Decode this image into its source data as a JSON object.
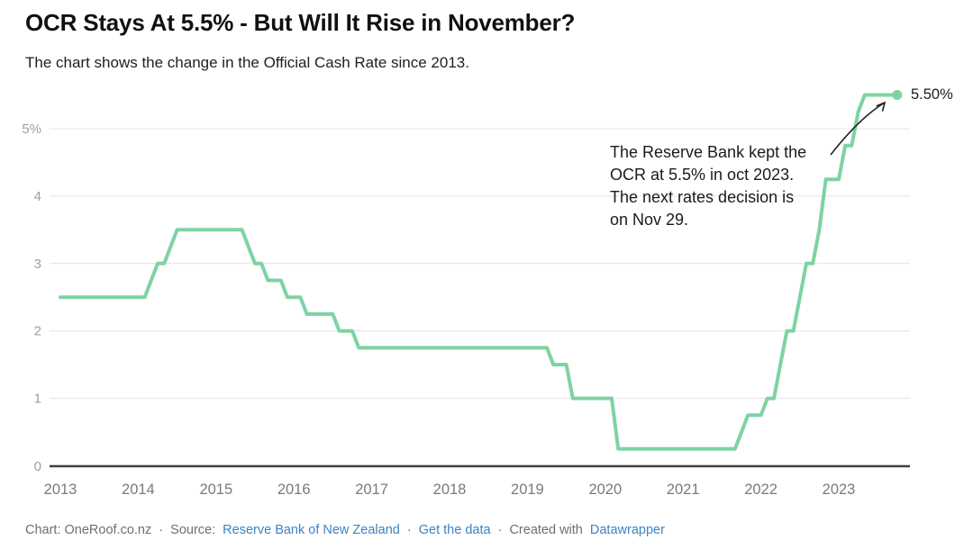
{
  "header": {
    "title": "OCR Stays At 5.5% - But Will It Rise in November?",
    "subtitle": "The chart shows the change in the Official Cash Rate since 2013."
  },
  "annotation": {
    "lines": [
      "The Reserve Bank kept the",
      "OCR at 5.5% in oct 2023.",
      "The next rates decision is",
      "on Nov 29."
    ]
  },
  "footer": {
    "chart_credit": "Chart: OneRoof.co.nz",
    "separator": "·",
    "source_label": "Source:",
    "source_link": "Reserve Bank of New Zealand",
    "get_data_link": "Get the data",
    "created_with": "Created with",
    "tool_link": "Datawrapper"
  },
  "chart_data": {
    "type": "line",
    "title": "OCR Stays At 5.5% - But Will It Rise in November?",
    "series_name": "Official Cash Rate",
    "unit": "%",
    "end_label": "5.50%",
    "end_point": {
      "date": "2023-10",
      "value": 5.5
    },
    "ylim": [
      0,
      5.5
    ],
    "grid": "horizontal",
    "line_color": "#7ed3a2",
    "yticks": [
      {
        "value": 0,
        "label": "0"
      },
      {
        "value": 1,
        "label": "1"
      },
      {
        "value": 2,
        "label": "2"
      },
      {
        "value": 3,
        "label": "3"
      },
      {
        "value": 4,
        "label": "4"
      },
      {
        "value": 5,
        "label": "5%"
      }
    ],
    "xticks": [
      {
        "value": 2013,
        "label": "2013"
      },
      {
        "value": 2014,
        "label": "2014"
      },
      {
        "value": 2015,
        "label": "2015"
      },
      {
        "value": 2016,
        "label": "2016"
      },
      {
        "value": 2017,
        "label": "2017"
      },
      {
        "value": 2018,
        "label": "2018"
      },
      {
        "value": 2019,
        "label": "2019"
      },
      {
        "value": 2020,
        "label": "2020"
      },
      {
        "value": 2021,
        "label": "2021"
      },
      {
        "value": 2022,
        "label": "2022"
      },
      {
        "value": 2023,
        "label": "2023"
      }
    ],
    "interpolation": "monthly, value held between changes",
    "rate_changes": [
      [
        "2013-01",
        2.5
      ],
      [
        "2014-03",
        2.75
      ],
      [
        "2014-04",
        3.0
      ],
      [
        "2014-06",
        3.25
      ],
      [
        "2014-07",
        3.5
      ],
      [
        "2015-06",
        3.25
      ],
      [
        "2015-07",
        3.0
      ],
      [
        "2015-09",
        2.75
      ],
      [
        "2015-12",
        2.5
      ],
      [
        "2016-03",
        2.25
      ],
      [
        "2016-08",
        2.0
      ],
      [
        "2016-11",
        1.75
      ],
      [
        "2019-05",
        1.5
      ],
      [
        "2019-08",
        1.0
      ],
      [
        "2020-03",
        0.25
      ],
      [
        "2021-10",
        0.5
      ],
      [
        "2021-11",
        0.75
      ],
      [
        "2022-02",
        1.0
      ],
      [
        "2022-04",
        1.5
      ],
      [
        "2022-05",
        2.0
      ],
      [
        "2022-07",
        2.5
      ],
      [
        "2022-08",
        3.0
      ],
      [
        "2022-10",
        3.5
      ],
      [
        "2022-11",
        4.25
      ],
      [
        "2023-02",
        4.75
      ],
      [
        "2023-04",
        5.25
      ],
      [
        "2023-05",
        5.5
      ]
    ]
  }
}
